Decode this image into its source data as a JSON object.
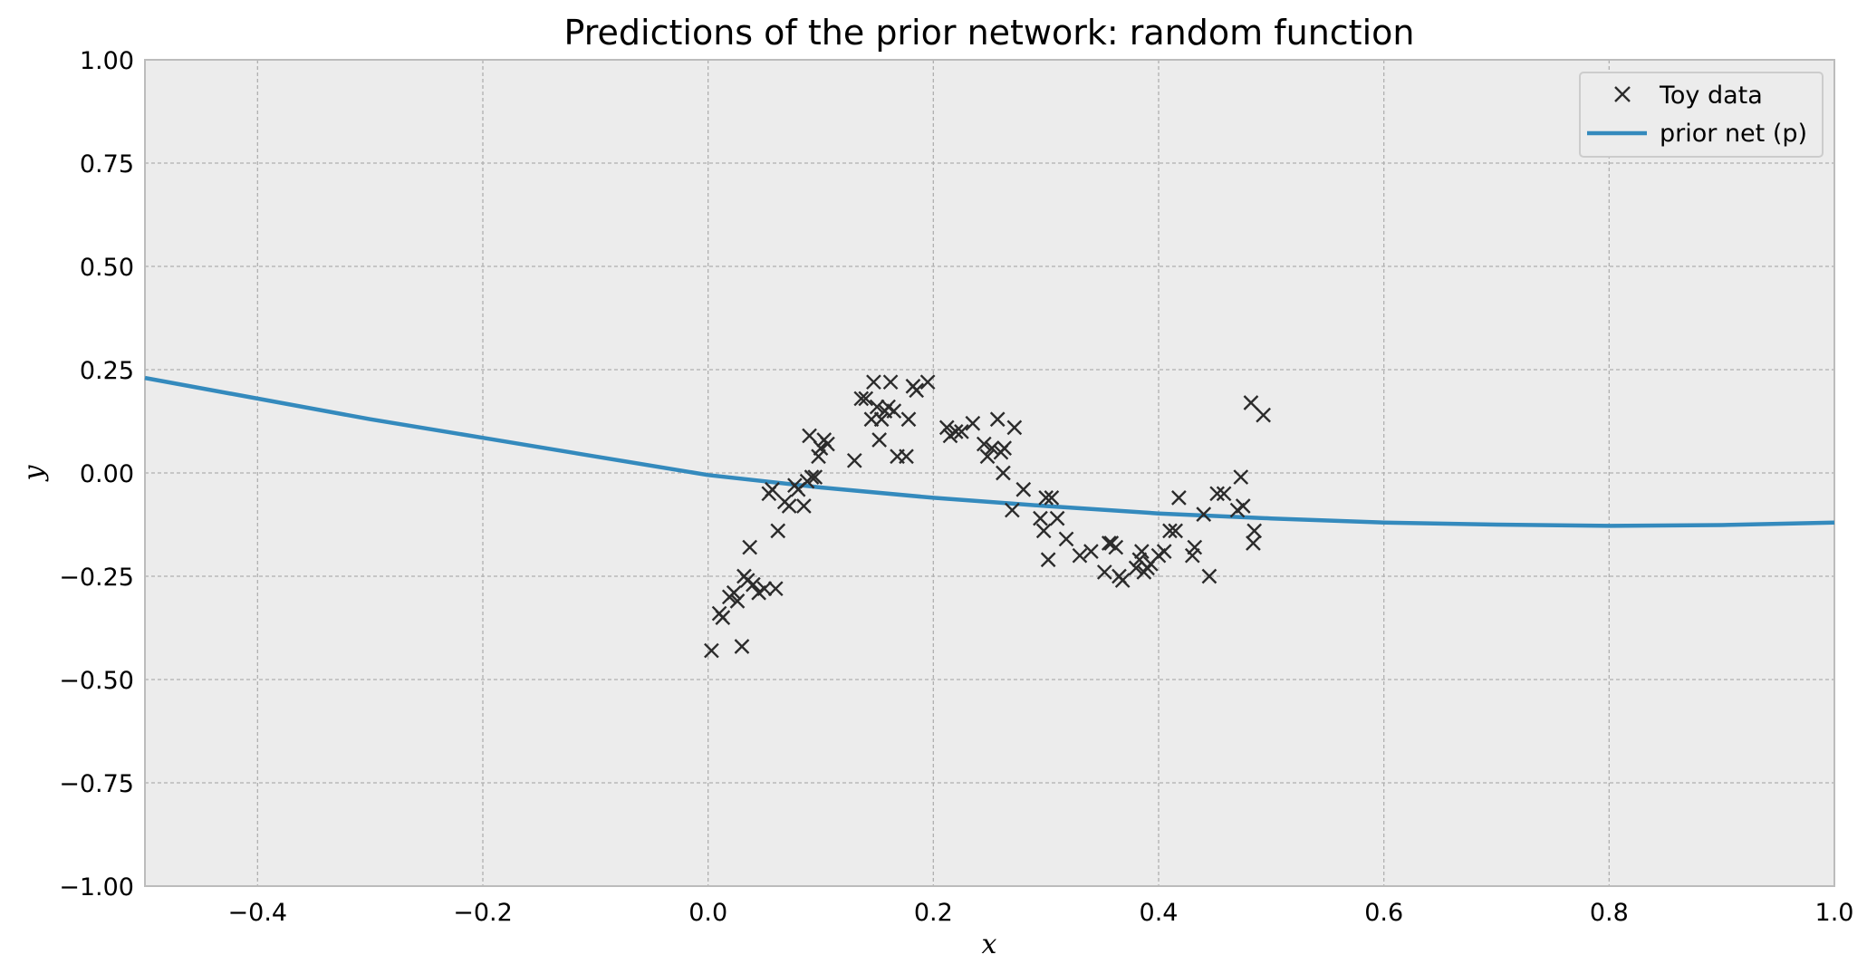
{
  "chart_data": {
    "type": "scatter",
    "title": "Predictions of the prior network: random function",
    "xlabel": "x",
    "ylabel": "y",
    "xlim": [
      -0.5,
      1.0
    ],
    "ylim": [
      -1.0,
      1.0
    ],
    "x_ticks": [
      "−0.4",
      "−0.2",
      "0.0",
      "0.2",
      "0.4",
      "0.6",
      "0.8",
      "1.0"
    ],
    "x_tick_values": [
      -0.4,
      -0.2,
      0.0,
      0.2,
      0.4,
      0.6,
      0.8,
      1.0
    ],
    "y_ticks": [
      "1.00",
      "0.75",
      "0.50",
      "0.25",
      "0.00",
      "−0.25",
      "−0.50",
      "−0.75",
      "−1.00"
    ],
    "y_tick_values": [
      1.0,
      0.75,
      0.5,
      0.25,
      0.0,
      -0.25,
      -0.5,
      -0.75,
      -1.0
    ],
    "grid": true,
    "legend_position": "top-right",
    "colors": {
      "background": "#ececec",
      "grid": "#b0b0b0",
      "line": "#348abd",
      "points": "#2b2b2b"
    },
    "series": [
      {
        "name": "Toy data",
        "kind": "scatter",
        "marker": "x",
        "points": [
          [
            0.003,
            -0.43
          ],
          [
            0.01,
            -0.34
          ],
          [
            0.013,
            -0.35
          ],
          [
            0.019,
            -0.3
          ],
          [
            0.023,
            -0.29
          ],
          [
            0.026,
            -0.31
          ],
          [
            0.03,
            -0.42
          ],
          [
            0.032,
            -0.25
          ],
          [
            0.035,
            -0.26
          ],
          [
            0.037,
            -0.18
          ],
          [
            0.04,
            -0.27
          ],
          [
            0.045,
            -0.29
          ],
          [
            0.05,
            -0.28
          ],
          [
            0.054,
            -0.05
          ],
          [
            0.057,
            -0.04
          ],
          [
            0.06,
            -0.28
          ],
          [
            0.062,
            -0.14
          ],
          [
            0.068,
            -0.07
          ],
          [
            0.072,
            -0.08
          ],
          [
            0.077,
            -0.03
          ],
          [
            0.08,
            -0.04
          ],
          [
            0.085,
            -0.08
          ],
          [
            0.088,
            -0.02
          ],
          [
            0.09,
            0.09
          ],
          [
            0.092,
            -0.01
          ],
          [
            0.095,
            -0.01
          ],
          [
            0.098,
            0.04
          ],
          [
            0.1,
            0.06
          ],
          [
            0.103,
            0.08
          ],
          [
            0.106,
            0.07
          ],
          [
            0.13,
            0.03
          ],
          [
            0.136,
            0.18
          ],
          [
            0.14,
            0.18
          ],
          [
            0.145,
            0.13
          ],
          [
            0.147,
            0.22
          ],
          [
            0.15,
            0.16
          ],
          [
            0.152,
            0.08
          ],
          [
            0.154,
            0.13
          ],
          [
            0.157,
            0.15
          ],
          [
            0.16,
            0.16
          ],
          [
            0.162,
            0.22
          ],
          [
            0.165,
            0.15
          ],
          [
            0.168,
            0.04
          ],
          [
            0.176,
            0.04
          ],
          [
            0.178,
            0.13
          ],
          [
            0.182,
            0.21
          ],
          [
            0.185,
            0.2
          ],
          [
            0.195,
            0.22
          ],
          [
            0.212,
            0.11
          ],
          [
            0.215,
            0.09
          ],
          [
            0.22,
            0.1
          ],
          [
            0.225,
            0.1
          ],
          [
            0.235,
            0.12
          ],
          [
            0.245,
            0.07
          ],
          [
            0.248,
            0.04
          ],
          [
            0.252,
            0.06
          ],
          [
            0.257,
            0.13
          ],
          [
            0.26,
            0.05
          ],
          [
            0.262,
            0.0
          ],
          [
            0.263,
            0.06
          ],
          [
            0.27,
            -0.09
          ],
          [
            0.272,
            0.11
          ],
          [
            0.28,
            -0.04
          ],
          [
            0.295,
            -0.11
          ],
          [
            0.298,
            -0.14
          ],
          [
            0.3,
            -0.06
          ],
          [
            0.302,
            -0.21
          ],
          [
            0.305,
            -0.06
          ],
          [
            0.31,
            -0.11
          ],
          [
            0.318,
            -0.16
          ],
          [
            0.33,
            -0.2
          ],
          [
            0.34,
            -0.19
          ],
          [
            0.352,
            -0.24
          ],
          [
            0.356,
            -0.17
          ],
          [
            0.358,
            -0.17
          ],
          [
            0.362,
            -0.18
          ],
          [
            0.365,
            -0.25
          ],
          [
            0.368,
            -0.26
          ],
          [
            0.38,
            -0.23
          ],
          [
            0.383,
            -0.21
          ],
          [
            0.385,
            -0.19
          ],
          [
            0.387,
            -0.24
          ],
          [
            0.39,
            -0.23
          ],
          [
            0.393,
            -0.22
          ],
          [
            0.4,
            -0.2
          ],
          [
            0.405,
            -0.19
          ],
          [
            0.41,
            -0.14
          ],
          [
            0.415,
            -0.14
          ],
          [
            0.418,
            -0.06
          ],
          [
            0.43,
            -0.2
          ],
          [
            0.432,
            -0.18
          ],
          [
            0.44,
            -0.1
          ],
          [
            0.445,
            -0.25
          ],
          [
            0.452,
            -0.05
          ],
          [
            0.458,
            -0.05
          ],
          [
            0.47,
            -0.09
          ],
          [
            0.473,
            -0.01
          ],
          [
            0.475,
            -0.08
          ],
          [
            0.482,
            0.17
          ],
          [
            0.484,
            -0.17
          ],
          [
            0.485,
            -0.14
          ],
          [
            0.493,
            0.14
          ]
        ]
      },
      {
        "name": "prior net (p)",
        "kind": "line",
        "points": [
          [
            -0.5,
            0.23
          ],
          [
            -0.4,
            0.18
          ],
          [
            -0.3,
            0.13
          ],
          [
            -0.2,
            0.085
          ],
          [
            -0.1,
            0.04
          ],
          [
            0.0,
            -0.005
          ],
          [
            0.1,
            -0.035
          ],
          [
            0.2,
            -0.06
          ],
          [
            0.3,
            -0.08
          ],
          [
            0.4,
            -0.098
          ],
          [
            0.5,
            -0.11
          ],
          [
            0.6,
            -0.12
          ],
          [
            0.7,
            -0.125
          ],
          [
            0.8,
            -0.128
          ],
          [
            0.9,
            -0.126
          ],
          [
            1.0,
            -0.12
          ]
        ]
      }
    ]
  }
}
